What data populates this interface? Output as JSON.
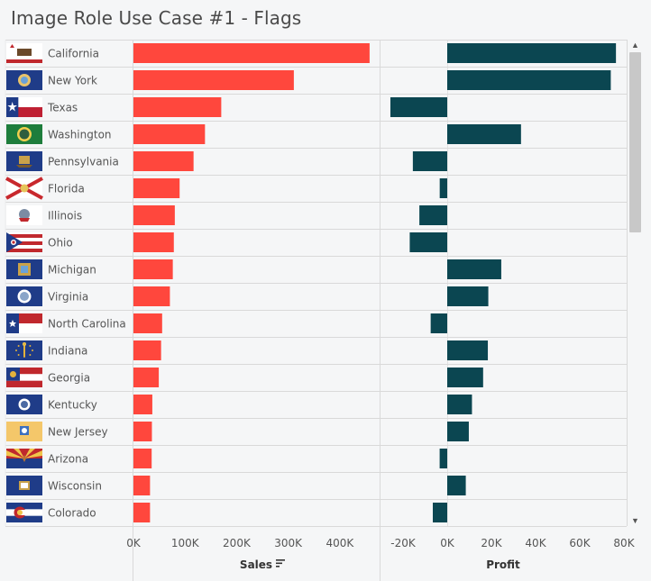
{
  "title": "Image Role Use Case #1 - Flags",
  "colors": {
    "sales": "#ff473d",
    "profit": "#0b4651",
    "row_divider": "#d9d9d9",
    "axis_line": "#d9d9d9",
    "label_text": "#555555",
    "background": "#f5f6f7"
  },
  "chart_data": [
    {
      "type": "bar",
      "orientation": "horizontal",
      "xlabel": "Sales",
      "xlim": [
        0,
        500000
      ],
      "tick_labels": [
        "0K",
        "100K",
        "200K",
        "300K",
        "400K"
      ],
      "tick_values": [
        0,
        100000,
        200000,
        300000,
        400000
      ],
      "categories": [
        "California",
        "New York",
        "Texas",
        "Washington",
        "Pennsylvania",
        "Florida",
        "Illinois",
        "Ohio",
        "Michigan",
        "Virginia",
        "North Carolina",
        "Indiana",
        "Georgia",
        "Kentucky",
        "New Jersey",
        "Arizona",
        "Wisconsin",
        "Colorado"
      ],
      "values": [
        457688,
        310876,
        170188,
        138641,
        116512,
        89474,
        80166,
        78258,
        76270,
        70637,
        55603,
        53555,
        49096,
        36592,
        35764,
        35282,
        32115,
        32108
      ],
      "sorted": "descending"
    },
    {
      "type": "bar",
      "orientation": "horizontal",
      "xlabel": "Profit",
      "xlim": [
        -25000,
        82000
      ],
      "tick_labels": [
        "-20K",
        "0K",
        "20K",
        "40K",
        "60K",
        "80K"
      ],
      "tick_values": [
        -20000,
        0,
        20000,
        40000,
        60000,
        80000
      ],
      "categories": [
        "California",
        "New York",
        "Texas",
        "Washington",
        "Pennsylvania",
        "Florida",
        "Illinois",
        "Ohio",
        "Michigan",
        "Virginia",
        "North Carolina",
        "Indiana",
        "Georgia",
        "Kentucky",
        "New Jersey",
        "Arizona",
        "Wisconsin",
        "Colorado"
      ],
      "values": [
        76381,
        74039,
        -25729,
        33403,
        -15560,
        -3399,
        -12608,
        -16971,
        24463,
        18598,
        -7491,
        18383,
        16250,
        11200,
        9773,
        -3428,
        8402,
        -6528
      ]
    }
  ],
  "flags": [
    "california-flag-icon",
    "new-york-flag-icon",
    "texas-flag-icon",
    "washington-flag-icon",
    "pennsylvania-flag-icon",
    "florida-flag-icon",
    "illinois-flag-icon",
    "ohio-flag-icon",
    "michigan-flag-icon",
    "virginia-flag-icon",
    "north-carolina-flag-icon",
    "indiana-flag-icon",
    "georgia-flag-icon",
    "kentucky-flag-icon",
    "new-jersey-flag-icon",
    "arizona-flag-icon",
    "wisconsin-flag-icon",
    "colorado-flag-icon"
  ],
  "sort_icon": "sort-descending-icon",
  "scroll": {
    "up_icon": "scroll-up-icon",
    "down_icon": "scroll-down-icon"
  }
}
